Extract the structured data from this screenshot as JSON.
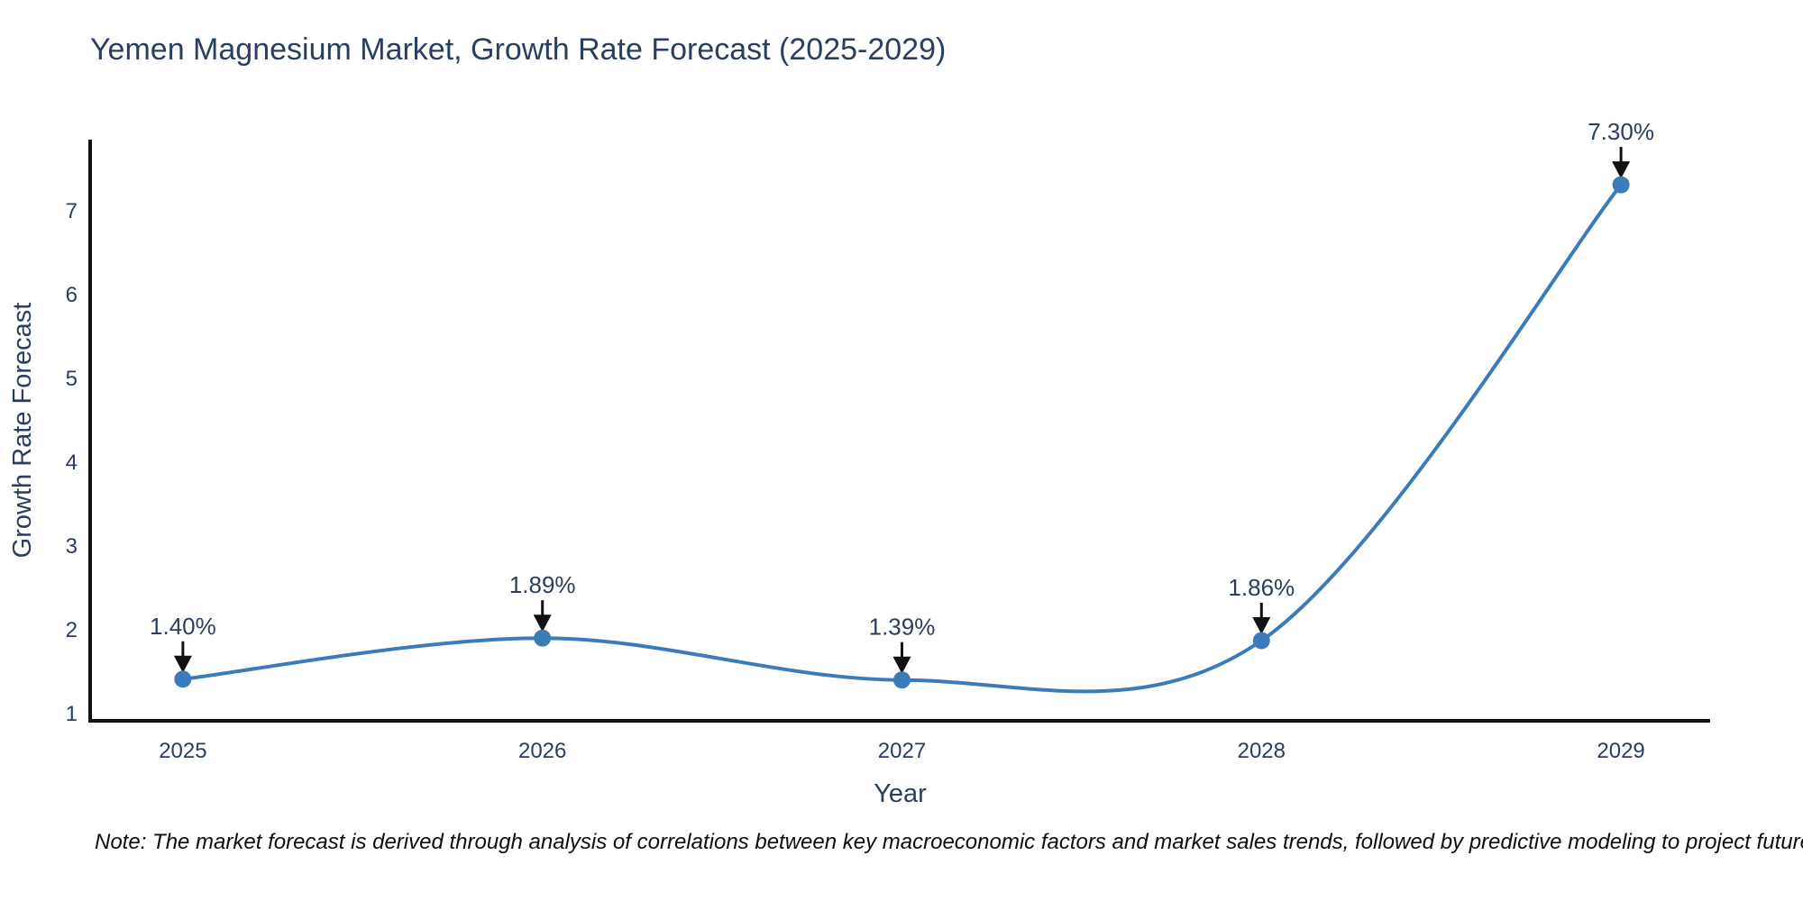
{
  "figure": {
    "title": "Yemen Magnesium Market, Growth Rate Forecast (2025-2029)",
    "footnote": "Note: The market forecast is derived through analysis of correlations between key macroeconomic factors and market sales trends, followed by predictive modeling to project future sales."
  },
  "chart_data": {
    "type": "line",
    "title": "Yemen Magnesium Market, Growth Rate Forecast (2025-2029)",
    "xlabel": "Year",
    "ylabel": "Growth Rate Forecast",
    "x": [
      2025,
      2026,
      2027,
      2028,
      2029
    ],
    "y": [
      1.4,
      1.89,
      1.39,
      1.86,
      7.3
    ],
    "annotations": [
      "1.40%",
      "1.89%",
      "1.39%",
      "1.86%",
      "7.30%"
    ],
    "xticks": [
      2025,
      2026,
      2027,
      2028,
      2029
    ],
    "xtick_labels": [
      "2025",
      "2026",
      "2027",
      "2028",
      "2029"
    ],
    "yticks": [
      1,
      2,
      3,
      4,
      5,
      6,
      7
    ],
    "ytick_labels": [
      "1",
      "2",
      "3",
      "4",
      "5",
      "6",
      "7"
    ],
    "xlim": [
      2024.742,
      2029.248
    ],
    "ylim": [
      0.903,
      7.839
    ],
    "line_shape": "spline",
    "grid": false,
    "legend": "none",
    "colors": {
      "line": "#3a7cba",
      "marker": "#3a7cba",
      "text": "#2a3f5f",
      "axis": "#111111",
      "arrow": "#111111",
      "note": "#0d0d0d",
      "background": "#ffffff"
    }
  }
}
